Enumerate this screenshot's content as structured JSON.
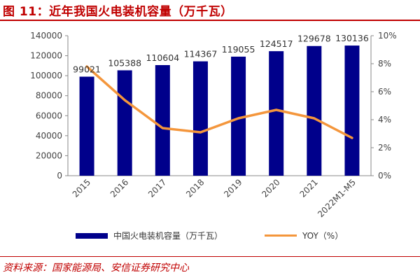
{
  "header": {
    "title": "图 11：近年我国火电装机容量（万千瓦）"
  },
  "footer": {
    "source": "资料来源：国家能源局、安信证券研究中心"
  },
  "colors": {
    "bar": "#00008b",
    "line": "#f4963c",
    "accent": "#c00000"
  },
  "chart_data": {
    "type": "bar",
    "categories": [
      "2015",
      "2016",
      "2017",
      "2018",
      "2019",
      "2020",
      "2021",
      "2022M1-M5"
    ],
    "series": [
      {
        "name": "中国火电装机容量（万千瓦）",
        "type": "bar",
        "axis": "left",
        "values": [
          99021,
          105388,
          110604,
          114367,
          119055,
          124517,
          129678,
          130136
        ],
        "labels": [
          "99021",
          "105388",
          "110604",
          "114367",
          "119055",
          "124517",
          "129678",
          "130136"
        ]
      },
      {
        "name": "YOY（%）",
        "type": "line",
        "axis": "right",
        "values": [
          7.8,
          5.4,
          3.4,
          3.1,
          4.1,
          4.7,
          4.1,
          2.7
        ]
      }
    ],
    "y_left": {
      "ylim": [
        0,
        140000
      ],
      "ticks": [
        "0",
        "20000",
        "40000",
        "60000",
        "80000",
        "100000",
        "120000",
        "140000"
      ]
    },
    "y_right": {
      "ylim": [
        0,
        10
      ],
      "ticks": [
        "0%",
        "2%",
        "4%",
        "6%",
        "8%",
        "10%"
      ]
    },
    "legend_position": "bottom",
    "grid": false
  }
}
